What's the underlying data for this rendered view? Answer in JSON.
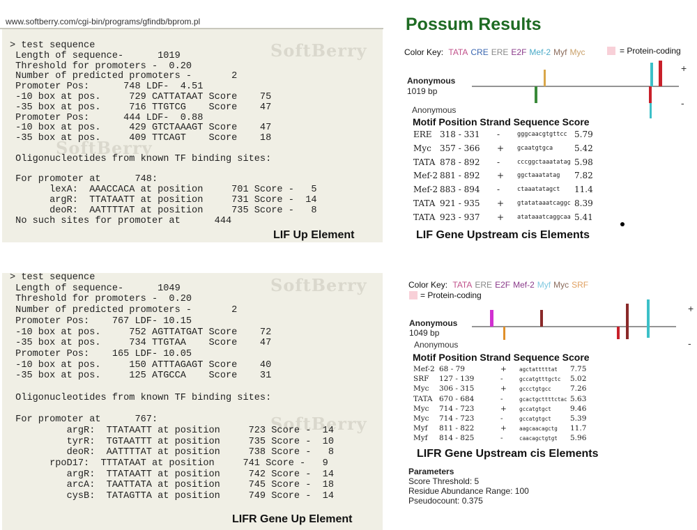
{
  "url": "www.softberry.com/cgi-bin/programs/gfindb/bprom.pl",
  "watermark": "SoftBerry",
  "bprom_top": {
    "lines": [
      "> test sequence",
      " Length of sequence-      1019",
      " Threshold for promoters -  0.20",
      " Number of predicted promoters -       2",
      " Promoter Pos:      748 LDF-  4.51",
      " -10 box at pos.     729 CATTATAAT Score    75",
      " -35 box at pos.     716 TTGTCG    Score    47",
      " Promoter Pos:      444 LDF-  0.88",
      " -10 box at pos.     429 GTCTAAAGT Score    47",
      " -35 box at pos.     409 TTCAGT    Score    18",
      "",
      " Oligonucleotides from known TF binding sites:",
      "",
      " For promoter at      748:",
      "       lexA:  AAACCACA at position     701 Score -   5",
      "       argR:  TTATAATT at position     731 Score -  14",
      "       deoR:  AATTTTAT at position     735 Score -   8",
      " No such sites for promoter at      444"
    ],
    "caption": "LIF Up Element"
  },
  "bprom_bottom": {
    "lines": [
      "> test sequence",
      " Length of sequence-      1049",
      " Threshold for promoters -  0.20",
      " Number of predicted promoters -       2",
      " Promoter Pos:    767 LDF- 10.15",
      " -10 box at pos.     752 AGTTATGAT Score    72",
      " -35 box at pos.     734 TTGTAA    Score    47",
      " Promoter Pos:    165 LDF- 10.05",
      " -10 box at pos.     150 ATTTAGAGT Score    40",
      " -35 box at pos.     125 ATGCCA    Score    31",
      "",
      " Oligonucleotides from known TF binding sites:",
      "",
      " For promoter at      767:",
      "          argR:  TTATAATT at position     723 Score -  14",
      "          tyrR:  TGTAATTT at position     735 Score -  10",
      "          deoR:  AATTTTAT at position     738 Score -   8",
      "       rpoD17:  TTTATAAT at position     741 Score -   9",
      "          argR:  TTATAATT at position     742 Score -  14",
      "          arcA:  TAATTATA at position     745 Score -  18",
      "          cysB:  TATAGTTA at position     749 Score -  14"
    ],
    "caption": "LIFR Gene Up Element"
  },
  "possum_title": "Possum Results",
  "possum_top": {
    "color_key_label": "Color Key:",
    "color_key": [
      {
        "name": "TATA",
        "color": "#c0508a"
      },
      {
        "name": "CRE",
        "color": "#3a66b0"
      },
      {
        "name": "ERE",
        "color": "#888888"
      },
      {
        "name": "E2F",
        "color": "#8a3a8a"
      },
      {
        "name": "Mef-2",
        "color": "#4aaac8"
      },
      {
        "name": "Myf",
        "color": "#8a6a5a"
      },
      {
        "name": "Myc",
        "color": "#c9a06a"
      }
    ],
    "protein_coding_label": "= Protein-coding",
    "seq_name": "Anonymous",
    "seq_len": "1019 bp",
    "plus": "+",
    "minus": "-",
    "anon2": "Anonymous",
    "table_header": "Motif Position Strand Sequence Score",
    "rows": [
      {
        "motif": "ERE",
        "position": "318 - 331",
        "strand": "-",
        "sequence": "gggcaacgtgttcc",
        "score": "5.79"
      },
      {
        "motif": "Myc",
        "position": "357 - 366",
        "strand": "+",
        "sequence": "gcaatgtgca",
        "score": "5.42"
      },
      {
        "motif": "TATA",
        "position": "878 - 892",
        "strand": "-",
        "sequence": "cccggctaaatatag",
        "score": "5.98"
      },
      {
        "motif": "Mef-2",
        "position": "881 - 892",
        "strand": "+",
        "sequence": "ggctaaatatag",
        "score": "7.82"
      },
      {
        "motif": "Mef-2",
        "position": "883 - 894",
        "strand": "-",
        "sequence": "ctaaatatagct",
        "score": "11.4"
      },
      {
        "motif": "TATA",
        "position": "921 - 935",
        "strand": "+",
        "sequence": "gtatataaatcaggc",
        "score": "8.39"
      },
      {
        "motif": "TATA",
        "position": "923 - 937",
        "strand": "+",
        "sequence": "atataaatcaggcaa",
        "score": "5.41"
      }
    ],
    "caption": "LIF Gene Upstream cis Elements"
  },
  "possum_bottom": {
    "color_key_label": "Color Key:",
    "color_key": [
      {
        "name": "TATA",
        "color": "#c0508a"
      },
      {
        "name": "ERE",
        "color": "#888888"
      },
      {
        "name": "E2F",
        "color": "#8a3a8a"
      },
      {
        "name": "Mef-2",
        "color": "#8a3a8a"
      },
      {
        "name": "Myf",
        "color": "#7ec8e0"
      },
      {
        "name": "Myc",
        "color": "#8a6a5a"
      },
      {
        "name": "SRF",
        "color": "#e0a060"
      }
    ],
    "protein_coding_label": "= Protein-coding",
    "seq_name": "Anonymous",
    "seq_len": "1049 bp",
    "plus": "+",
    "minus": "-",
    "anon2": "Anonymous",
    "table_header": "Motif Position Strand Sequence Score",
    "rows": [
      {
        "motif": "Mef-2",
        "position": "68 - 79",
        "strand": "+",
        "sequence": "agctatttttat",
        "score": "7.75"
      },
      {
        "motif": "SRF",
        "position": "127 - 139",
        "strand": "-",
        "sequence": "gccatgtttgctc",
        "score": "5.02"
      },
      {
        "motif": "Myc",
        "position": "306 - 315",
        "strand": "+",
        "sequence": "gccctgtgcc",
        "score": "7.26"
      },
      {
        "motif": "TATA",
        "position": "670 - 684",
        "strand": "-",
        "sequence": "gcactgcttttctac",
        "score": "5.63"
      },
      {
        "motif": "Myc",
        "position": "714 - 723",
        "strand": "+",
        "sequence": "gccatgtgct",
        "score": "9.46"
      },
      {
        "motif": "Myc",
        "position": "714 - 723",
        "strand": "-",
        "sequence": "gccatgtgct",
        "score": "5.39"
      },
      {
        "motif": "Myf",
        "position": "811 - 822",
        "strand": "+",
        "sequence": "aagcaacagctg",
        "score": "11.7"
      },
      {
        "motif": "Myf",
        "position": "814 - 825",
        "strand": "-",
        "sequence": "caacagctgtgt",
        "score": "5.96"
      }
    ],
    "caption": "LIFR Gene Upstream cis Elements",
    "parameters": {
      "title": "Parameters",
      "score_threshold": "Score Threshold: 5",
      "residue_range": "Residue Abundance Range: 100",
      "pseudocount": "Pseudocount: 0.375"
    }
  }
}
